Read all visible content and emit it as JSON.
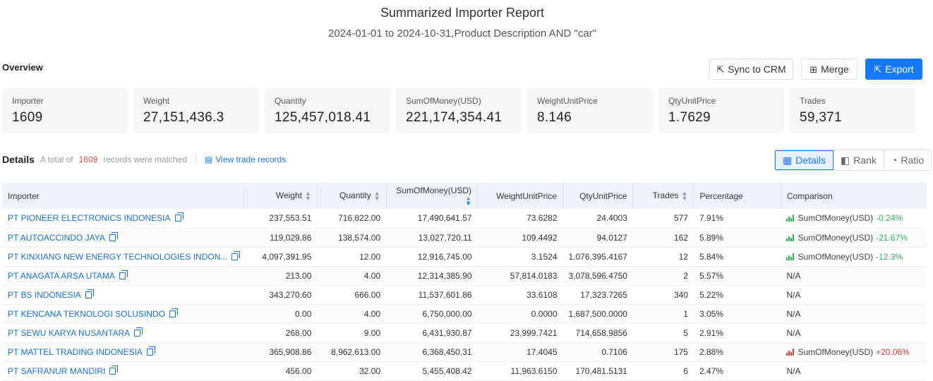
{
  "header": {
    "title": "Summarized Importer Report",
    "subtitle": "2024-01-01 to 2024-10-31,Product Description AND \"car\""
  },
  "overview": {
    "label": "Overview",
    "buttons": {
      "sync": "Sync to CRM",
      "merge": "Merge",
      "export": "Export"
    },
    "cards": [
      {
        "label": "Importer",
        "value": "1609"
      },
      {
        "label": "Weight",
        "value": "27,151,436.3"
      },
      {
        "label": "Quantity",
        "value": "125,457,018.41"
      },
      {
        "label": "SumOfMoney(USD)",
        "value": "221,174,354.41"
      },
      {
        "label": "WeightUnitPrice",
        "value": "8.146"
      },
      {
        "label": "QtyUnitPrice",
        "value": "1.7629"
      },
      {
        "label": "Trades",
        "value": "59,371"
      }
    ]
  },
  "details": {
    "title": "Details",
    "total_prefix": "A total of",
    "total_count": "1609",
    "total_suffix": "records were matched",
    "view_link": "View trade records",
    "tabs": {
      "details": "Details",
      "rank": "Rank",
      "ratio": "Ratio"
    }
  },
  "table": {
    "headers": {
      "importer": "Importer",
      "weight": "Weight",
      "quantity": "Quantity",
      "sum": "SumOfMoney(USD)",
      "wup": "WeightUnitPrice",
      "qup": "QtyUnitPrice",
      "trades": "Trades",
      "pct": "Percentage",
      "cmp": "Comparison"
    },
    "rows": [
      {
        "importer": "PT PIONEER ELECTRONICS INDONESIA",
        "weight": "237,553.51",
        "quantity": "716,822.00",
        "sum": "17,490,641.57",
        "wup": "73.6282",
        "qup": "24.4003",
        "trades": "577",
        "pct": "7.91%",
        "cmp_label": "SumOfMoney(USD)",
        "cmp_value": "-0.24%",
        "cmp_dir": "down"
      },
      {
        "importer": "PT AUTOACCINDO JAYA",
        "weight": "119,029.86",
        "quantity": "138,574.00",
        "sum": "13,027,720.11",
        "wup": "109.4492",
        "qup": "94.0127",
        "trades": "162",
        "pct": "5.89%",
        "cmp_label": "SumOfMoney(USD)",
        "cmp_value": "-21.67%",
        "cmp_dir": "down"
      },
      {
        "importer": "PT KINXIANG NEW ENERGY TECHNOLOGIES INDON...",
        "weight": "4,097,391.95",
        "quantity": "12.00",
        "sum": "12,916,745.00",
        "wup": "3.1524",
        "qup": "1,076,395.4167",
        "trades": "12",
        "pct": "5.84%",
        "cmp_label": "SumOfMoney(USD)",
        "cmp_value": "-12.3%",
        "cmp_dir": "down"
      },
      {
        "importer": "PT ANAGATA ARSA UTAMA",
        "weight": "213.00",
        "quantity": "4.00",
        "sum": "12,314,385.90",
        "wup": "57,814.0183",
        "qup": "3,078,596.4750",
        "trades": "2",
        "pct": "5.57%",
        "cmp_label": "N/A",
        "cmp_value": "",
        "cmp_dir": "none"
      },
      {
        "importer": "PT BS INDONESIA",
        "weight": "343,270.60",
        "quantity": "666.00",
        "sum": "11,537,601.86",
        "wup": "33.6108",
        "qup": "17,323.7265",
        "trades": "340",
        "pct": "5.22%",
        "cmp_label": "N/A",
        "cmp_value": "",
        "cmp_dir": "none"
      },
      {
        "importer": "PT KENCANA TEKNOLOGI SOLUSINDO",
        "weight": "0.00",
        "quantity": "4.00",
        "sum": "6,750,000.00",
        "wup": "0.0000",
        "qup": "1,687,500.0000",
        "trades": "1",
        "pct": "3.05%",
        "cmp_label": "N/A",
        "cmp_value": "",
        "cmp_dir": "none"
      },
      {
        "importer": "PT SEWU KARYA NUSANTARA",
        "weight": "268.00",
        "quantity": "9.00",
        "sum": "6,431,930.87",
        "wup": "23,999.7421",
        "qup": "714,658.9856",
        "trades": "5",
        "pct": "2.91%",
        "cmp_label": "N/A",
        "cmp_value": "",
        "cmp_dir": "none"
      },
      {
        "importer": "PT MATTEL TRADING INDONESIA",
        "weight": "365,908.86",
        "quantity": "8,962,613.00",
        "sum": "6,368,450.31",
        "wup": "17.4045",
        "qup": "0.7106",
        "trades": "175",
        "pct": "2.88%",
        "cmp_label": "SumOfMoney(USD)",
        "cmp_value": "+20.06%",
        "cmp_dir": "up"
      },
      {
        "importer": "PT SAFRANUR MANDIRI",
        "weight": "456.00",
        "quantity": "32.00",
        "sum": "5,455,408.42",
        "wup": "11,963.6150",
        "qup": "170,481.5131",
        "trades": "6",
        "pct": "2.47%",
        "cmp_label": "N/A",
        "cmp_value": "",
        "cmp_dir": "none"
      }
    ]
  }
}
